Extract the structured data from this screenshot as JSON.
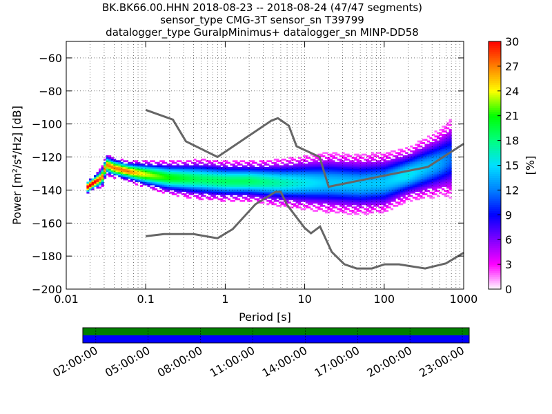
{
  "title_lines": [
    "BK.BK66.00.HHN   2018-08-23 -- 2018-08-24  (47/47 segments)",
    "sensor_type CMG-3T sensor_sn T39799",
    "datalogger_type GuralpMinimus+ datalogger_sn MINP-DD58"
  ],
  "chart_data": [
    {
      "type": "heatmap",
      "title": "BK.BK66.00.HHN   2018-08-23 -- 2018-08-24  (47/47 segments)",
      "xlabel": "Period [s]",
      "ylabel": "Power [m²/s⁴/Hz] [dB]",
      "x_scale": "log",
      "xlim": [
        0.01,
        1000
      ],
      "ylim": [
        -200,
        -50
      ],
      "x_ticks": [
        0.01,
        0.1,
        1,
        10,
        100,
        1000
      ],
      "x_tick_labels": [
        "0.01",
        "0.1",
        "1",
        "10",
        "100",
        "1000"
      ],
      "y_ticks": [
        -200,
        -180,
        -160,
        -140,
        -120,
        -100,
        -80,
        -60
      ],
      "y_tick_labels": [
        "−200",
        "−180",
        "−160",
        "−140",
        "−120",
        "−100",
        "−80",
        "−60"
      ],
      "grid": "dotted, vertical and horizontal",
      "colorbar": {
        "label": "[%]",
        "range": [
          0,
          30
        ],
        "ticks": [
          0,
          3,
          6,
          9,
          12,
          15,
          18,
          21,
          24,
          27,
          30
        ],
        "colors": [
          "#ffffff",
          "#ff00ff",
          "#8000ff",
          "#0000ff",
          "#0080ff",
          "#00e0ff",
          "#00ff80",
          "#00ff00",
          "#ffff00",
          "#ff8000",
          "#ff0000"
        ]
      },
      "noise_models": [
        {
          "name": "NHNM",
          "color": "#666666",
          "points": [
            [
              0.1,
              -91.5
            ],
            [
              0.22,
              -97.4
            ],
            [
              0.32,
              -110.5
            ],
            [
              0.8,
              -120
            ],
            [
              3.8,
              -98
            ],
            [
              4.6,
              -96.5
            ],
            [
              6.3,
              -101
            ],
            [
              7.9,
              -113.5
            ],
            [
              15.4,
              -120
            ],
            [
              20,
              -138
            ],
            [
              354.8,
              -126
            ],
            [
              1000,
              -112
            ]
          ]
        },
        {
          "name": "NLNM",
          "color": "#666666",
          "points": [
            [
              0.1,
              -168
            ],
            [
              0.17,
              -166.7
            ],
            [
              0.4,
              -166.7
            ],
            [
              0.8,
              -169.2
            ],
            [
              1.24,
              -163.7
            ],
            [
              2.4,
              -148.6
            ],
            [
              4.3,
              -141.1
            ],
            [
              5,
              -141.1
            ],
            [
              6,
              -149
            ],
            [
              10,
              -163
            ],
            [
              12,
              -166.2
            ],
            [
              15.6,
              -162.1
            ],
            [
              21.9,
              -177.5
            ],
            [
              31.6,
              -185
            ],
            [
              45,
              -187.5
            ],
            [
              70,
              -187.5
            ],
            [
              101,
              -185
            ],
            [
              154,
              -185
            ],
            [
              328,
              -187.5
            ],
            [
              600,
              -184.4
            ],
            [
              1000,
              -178
            ]
          ]
        }
      ],
      "psd_bands": [
        {
          "x": [
            0.018,
            0.022,
            0.028,
            0.032,
            0.04,
            0.06,
            0.1,
            0.2,
            0.5,
            1,
            2,
            5,
            10,
            20,
            50,
            100,
            200,
            500,
            700
          ],
          "y": [
            -139,
            -136,
            -133,
            -125,
            -127,
            -129,
            -131,
            -133,
            -134,
            -135,
            -135,
            -136,
            -136,
            -136,
            -137,
            -136,
            -131,
            -124,
            -121
          ],
          "spread": [
            2,
            2,
            3,
            3,
            3,
            3,
            4,
            5,
            6,
            6,
            6,
            7,
            8,
            9,
            9,
            9,
            8,
            10,
            12
          ]
        }
      ]
    },
    {
      "type": "heatmap",
      "title": "",
      "x_ticks": [
        "02:00:00",
        "05:00:00",
        "08:00:00",
        "11:00:00",
        "14:00:00",
        "17:00:00",
        "20:00:00",
        "23:00:00"
      ],
      "rows": [
        {
          "color": "#008000",
          "label": ""
        },
        {
          "color": "#0000ff",
          "label": ""
        }
      ]
    }
  ]
}
